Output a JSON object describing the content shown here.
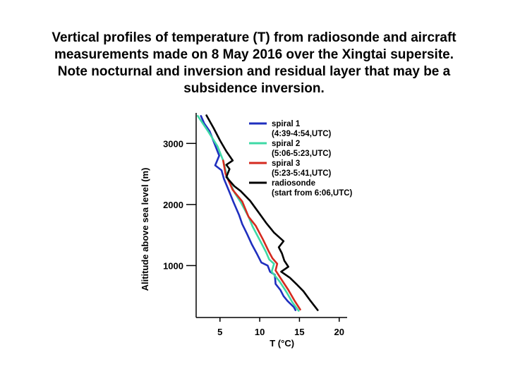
{
  "slide": {
    "title_lines": [
      "Vertical profiles of temperature (T) from radiosonde and aircraft",
      "measurements made on 8 May 2016 over the Xingtai supersite.",
      "Note nocturnal and inversion and residual layer that may be a",
      "subsidence inversion."
    ]
  },
  "chart_data": {
    "type": "line",
    "xlabel": "T (°C)",
    "ylabel": "Alititude above sea level (m)",
    "xlim": [
      2,
      21
    ],
    "ylim": [
      150,
      3500
    ],
    "xticks": [
      5,
      10,
      15,
      20
    ],
    "yticks": [
      1000,
      2000,
      3000
    ],
    "grid": false,
    "legend_position": "top-right",
    "series": [
      {
        "name": "spiral 1",
        "subtitle": "(4:39-4:54,UTC)",
        "color": "#1f2fbf",
        "points": [
          [
            2.6,
            3450
          ],
          [
            3.0,
            3330
          ],
          [
            3.7,
            3200
          ],
          [
            4.3,
            3000
          ],
          [
            4.9,
            2800
          ],
          [
            4.4,
            2640
          ],
          [
            5.2,
            2560
          ],
          [
            5.5,
            2420
          ],
          [
            6.2,
            2200
          ],
          [
            6.7,
            2040
          ],
          [
            7.4,
            1830
          ],
          [
            7.8,
            1680
          ],
          [
            8.4,
            1520
          ],
          [
            9.0,
            1350
          ],
          [
            9.7,
            1180
          ],
          [
            10.2,
            1050
          ],
          [
            11.0,
            1000
          ],
          [
            11.3,
            900
          ],
          [
            11.9,
            850
          ],
          [
            12.0,
            700
          ],
          [
            12.6,
            600
          ],
          [
            13.0,
            500
          ],
          [
            13.5,
            420
          ],
          [
            14.3,
            320
          ],
          [
            14.5,
            270
          ]
        ]
      },
      {
        "name": "spiral 2",
        "subtitle": "(5:06-5:23,UTC)",
        "color": "#3ed9a6",
        "points": [
          [
            2.2,
            3450
          ],
          [
            3.5,
            3200
          ],
          [
            4.7,
            2950
          ],
          [
            5.4,
            2720
          ],
          [
            5.9,
            2460
          ],
          [
            6.8,
            2200
          ],
          [
            7.6,
            2040
          ],
          [
            8.6,
            1800
          ],
          [
            9.1,
            1640
          ],
          [
            10.0,
            1420
          ],
          [
            10.8,
            1220
          ],
          [
            11.2,
            1100
          ],
          [
            11.8,
            1030
          ],
          [
            11.5,
            900
          ],
          [
            12.5,
            740
          ],
          [
            13.4,
            560
          ],
          [
            14.1,
            400
          ],
          [
            14.9,
            260
          ]
        ]
      },
      {
        "name": "spiral 3",
        "subtitle": "(5:23-5:41,UTC)",
        "color": "#d42a1f",
        "points": [
          [
            5.4,
            2720
          ],
          [
            5.7,
            2500
          ],
          [
            6.6,
            2240
          ],
          [
            7.8,
            2050
          ],
          [
            8.6,
            1800
          ],
          [
            9.5,
            1650
          ],
          [
            10.4,
            1430
          ],
          [
            11.1,
            1240
          ],
          [
            11.6,
            1120
          ],
          [
            12.2,
            1030
          ],
          [
            12.0,
            920
          ],
          [
            12.7,
            780
          ],
          [
            13.6,
            600
          ],
          [
            14.4,
            420
          ],
          [
            15.1,
            280
          ]
        ]
      },
      {
        "name": "radiosonde",
        "subtitle": "(start from 6:06,UTC)",
        "color": "#000000",
        "points": [
          [
            3.3,
            3460
          ],
          [
            4.2,
            3250
          ],
          [
            5.0,
            3050
          ],
          [
            5.8,
            2870
          ],
          [
            6.6,
            2720
          ],
          [
            5.8,
            2650
          ],
          [
            6.2,
            2580
          ],
          [
            5.8,
            2450
          ],
          [
            6.8,
            2300
          ],
          [
            7.6,
            2220
          ],
          [
            8.8,
            2060
          ],
          [
            9.8,
            1880
          ],
          [
            10.8,
            1700
          ],
          [
            11.8,
            1540
          ],
          [
            13.0,
            1400
          ],
          [
            12.4,
            1300
          ],
          [
            12.8,
            1200
          ],
          [
            13.1,
            1080
          ],
          [
            13.6,
            980
          ],
          [
            12.7,
            900
          ],
          [
            13.8,
            800
          ],
          [
            14.6,
            700
          ],
          [
            15.5,
            580
          ],
          [
            16.4,
            420
          ],
          [
            17.3,
            270
          ]
        ]
      }
    ]
  }
}
